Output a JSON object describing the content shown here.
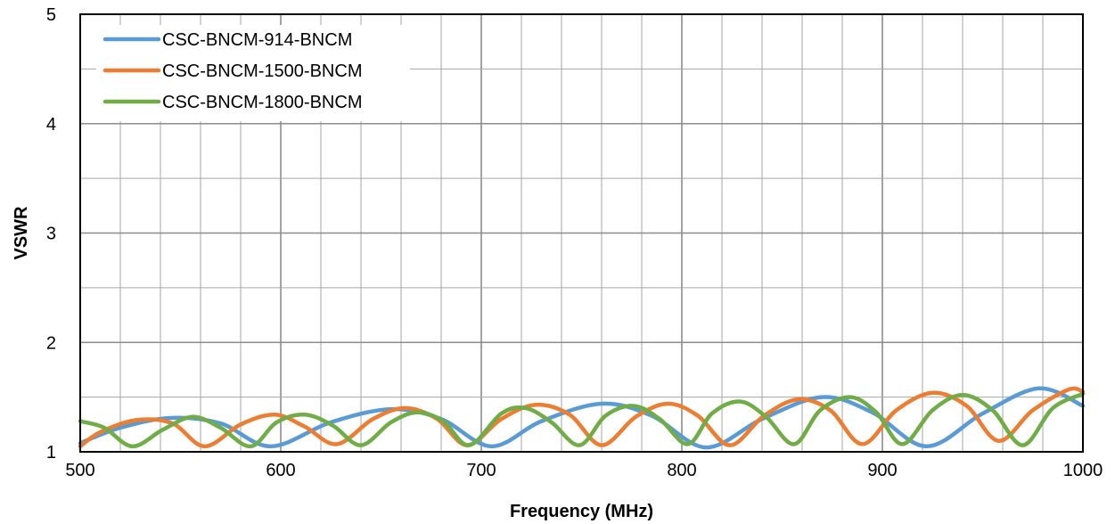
{
  "chart_data": {
    "type": "line",
    "xlabel": "Frequency (MHz)",
    "ylabel": "VSWR",
    "xlim": [
      500,
      1000
    ],
    "ylim": [
      1,
      5
    ],
    "x_ticks": [
      500,
      600,
      700,
      800,
      900,
      1000
    ],
    "y_ticks": [
      1,
      2,
      3,
      4,
      5
    ],
    "x_minor_step": 20,
    "y_minor_step": 0.5,
    "grid": true,
    "legend_position": "top-left",
    "series": [
      {
        "name": "CSC-BNCM-914-BNCM",
        "color": "#5B9BD5",
        "x": [
          500,
          520,
          545,
          570,
          595,
          625,
          655,
          680,
          705,
          730,
          760,
          785,
          812,
          840,
          870,
          895,
          922,
          950,
          978,
          1000
        ],
        "y": [
          1.08,
          1.22,
          1.31,
          1.26,
          1.05,
          1.27,
          1.39,
          1.3,
          1.05,
          1.28,
          1.44,
          1.33,
          1.04,
          1.3,
          1.5,
          1.36,
          1.05,
          1.35,
          1.58,
          1.42
        ]
      },
      {
        "name": "CSC-BNCM-1500-BNCM",
        "color": "#ED7D31",
        "x": [
          500,
          510,
          528,
          546,
          562,
          580,
          597,
          612,
          628,
          646,
          662,
          678,
          693,
          710,
          727,
          744,
          760,
          777,
          793,
          808,
          824,
          841,
          858,
          874,
          890,
          907,
          925,
          942,
          958,
          975,
          993,
          1000
        ],
        "y": [
          1.05,
          1.18,
          1.29,
          1.26,
          1.05,
          1.25,
          1.34,
          1.23,
          1.07,
          1.3,
          1.4,
          1.3,
          1.06,
          1.3,
          1.43,
          1.34,
          1.06,
          1.32,
          1.44,
          1.33,
          1.06,
          1.33,
          1.48,
          1.38,
          1.07,
          1.38,
          1.54,
          1.42,
          1.1,
          1.38,
          1.57,
          1.55
        ]
      },
      {
        "name": "CSC-BNCM-1800-BNCM",
        "color": "#70AD47",
        "x": [
          500,
          512,
          526,
          541,
          556,
          570,
          585,
          598,
          612,
          626,
          640,
          655,
          668,
          681,
          694,
          710,
          722,
          735,
          749,
          762,
          776,
          789,
          803,
          815,
          829,
          842,
          856,
          869,
          884,
          897,
          910,
          925,
          940,
          955,
          970,
          985,
          1000
        ],
        "y": [
          1.28,
          1.22,
          1.05,
          1.2,
          1.32,
          1.22,
          1.05,
          1.27,
          1.34,
          1.24,
          1.06,
          1.27,
          1.36,
          1.28,
          1.06,
          1.35,
          1.4,
          1.27,
          1.06,
          1.33,
          1.42,
          1.3,
          1.07,
          1.35,
          1.46,
          1.32,
          1.07,
          1.38,
          1.5,
          1.36,
          1.07,
          1.38,
          1.52,
          1.38,
          1.06,
          1.4,
          1.53
        ]
      }
    ]
  }
}
